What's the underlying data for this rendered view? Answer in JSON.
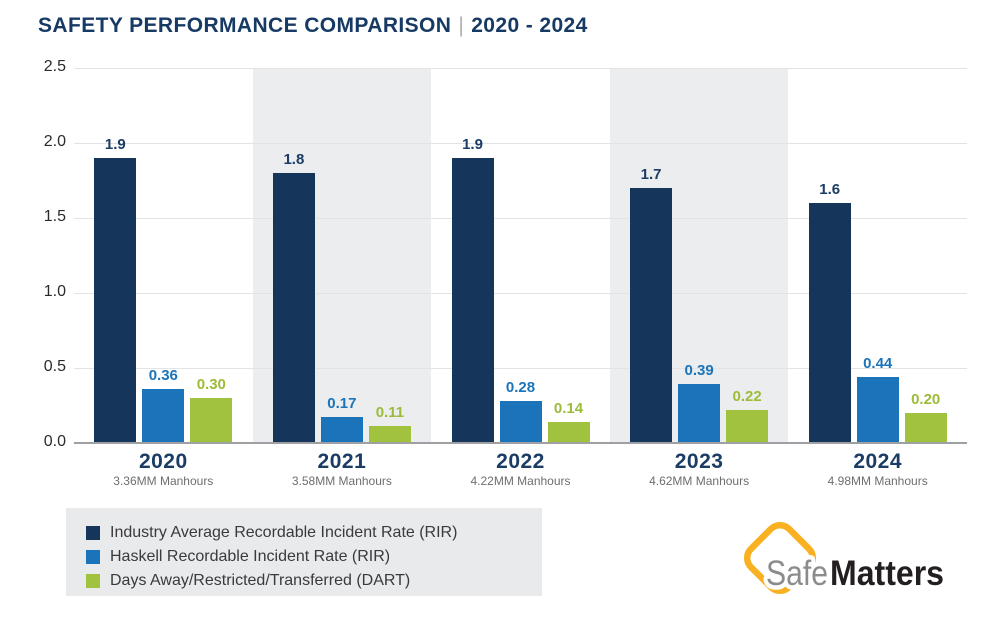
{
  "header": {
    "title": "SAFETY PERFORMANCE COMPARISON",
    "separator": "|",
    "subtitle": "2020 - 2024"
  },
  "colors": {
    "title_navy": "#163A64",
    "year_label": "#1B3C64",
    "axis_text": "#2B2B2B",
    "manhours_text": "#6D6E71",
    "band": "#ECEDEE",
    "gridline": "#E2E3E5",
    "baseline": "#9EA0A3",
    "legend_bg": "#E9EAEB",
    "legend_text": "#3A3A3C",
    "separator_gray": "#AFB2B5",
    "logo_yellow": "#F9B021",
    "logo_gray": "#8A8C8E",
    "logo_black": "#231F20"
  },
  "chart_data": {
    "type": "bar",
    "title": "SAFETY PERFORMANCE COMPARISON | 2020 - 2024",
    "categories": [
      "2020",
      "2021",
      "2022",
      "2023",
      "2024"
    ],
    "category_sublabels": [
      "3.36MM Manhours",
      "3.58MM Manhours",
      "4.22MM Manhours",
      "4.62MM Manhours",
      "4.98MM Manhours"
    ],
    "series": [
      {
        "name": "Industry Average Recordable Incident Rate (RIR)",
        "color": "#16355A",
        "label_color": "#1B3C64",
        "values": [
          1.9,
          1.8,
          1.9,
          1.7,
          1.6
        ],
        "labels": [
          "1.9",
          "1.8",
          "1.9",
          "1.7",
          "1.6"
        ]
      },
      {
        "name": "Haskell Recordable Incident Rate (RIR)",
        "color": "#1B74B9",
        "label_color": "#1B74B9",
        "values": [
          0.36,
          0.17,
          0.28,
          0.39,
          0.44
        ],
        "labels": [
          "0.36",
          "0.17",
          "0.28",
          "0.39",
          "0.44"
        ]
      },
      {
        "name": "Days Away/Restricted/Transferred (DART)",
        "color": "#A0C23E",
        "label_color": "#9CBC38",
        "values": [
          0.3,
          0.11,
          0.14,
          0.22,
          0.2
        ],
        "labels": [
          "0.30",
          "0.11",
          "0.14",
          "0.22",
          "0.20"
        ]
      }
    ],
    "xlabel": "",
    "ylabel": "",
    "ylim": [
      0,
      2.5
    ],
    "ytick_step": 0.5,
    "yticks": [
      "0.0",
      "0.5",
      "1.0",
      "1.5",
      "2.0",
      "2.5"
    ],
    "shaded_year_indices": [
      1,
      3
    ],
    "grid": true,
    "legend_position": "bottom-left"
  },
  "logo": {
    "first": "Safe",
    "second": "Matters"
  }
}
